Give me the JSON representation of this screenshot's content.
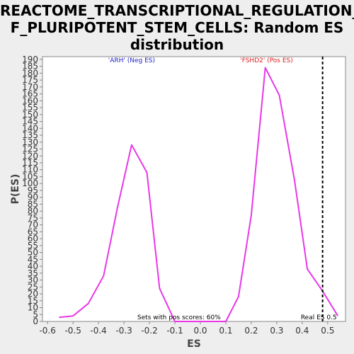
{
  "chart_data": {
    "type": "line",
    "title_lines": [
      "REACTOME_TRANSCRIPTIONAL_REGULATION_O",
      "F_PLURIPOTENT_STEM_CELLS: Random ES",
      "distribution"
    ],
    "xlabel": "ES",
    "ylabel": "P(ES)",
    "xlim": [
      -0.62,
      0.57
    ],
    "ylim": [
      0,
      192
    ],
    "xticks": [
      -0.6,
      -0.5,
      -0.4,
      -0.3,
      -0.2,
      -0.1,
      0.0,
      0.1,
      0.2,
      0.3,
      0.4,
      0.5
    ],
    "xtick_labels": [
      "-0.6",
      "-0.5",
      "-0.4",
      "-0.3",
      "-0.2",
      "-0.1",
      "0.0",
      "0.1",
      "0.2",
      "0.3",
      "0.4",
      "0.5"
    ],
    "yticks": [
      0,
      5,
      10,
      15,
      20,
      25,
      30,
      35,
      40,
      45,
      50,
      55,
      60,
      65,
      70,
      75,
      80,
      85,
      90,
      95,
      100,
      105,
      110,
      115,
      120,
      125,
      130,
      135,
      140,
      145,
      150,
      155,
      160,
      165,
      170,
      175,
      180,
      185,
      190
    ],
    "ytick_labels": [
      "0",
      "5",
      "10",
      "15",
      "20",
      "25",
      "30",
      "35",
      "40",
      "45",
      "50",
      "55",
      "60",
      "65",
      "70",
      "75",
      "80",
      "85",
      "90",
      "95",
      "100",
      "105",
      "110",
      "115",
      "120",
      "125",
      "130",
      "135",
      "140",
      "145",
      "150",
      "155",
      "160",
      "165",
      "170",
      "175",
      "180",
      "185",
      "190"
    ],
    "grid": false,
    "series": [
      {
        "color": "#e837e8",
        "x": [
          -0.555,
          -0.5,
          -0.44,
          -0.38,
          -0.325,
          -0.27,
          -0.21,
          -0.16,
          -0.1,
          -0.05,
          0.0,
          0.05,
          0.1,
          0.15,
          0.2,
          0.255,
          0.31,
          0.37,
          0.42,
          0.48,
          0.54
        ],
        "y": [
          3,
          4,
          13,
          33,
          83,
          128,
          108,
          24,
          0,
          0,
          0,
          0,
          0,
          18,
          77,
          184,
          164,
          102,
          38,
          22,
          4
        ]
      }
    ],
    "real_es_line": {
      "x": 0.48,
      "color": "#000000"
    },
    "annotations": {
      "neg_label": {
        "text": "'ARH' (Neg ES)",
        "color": "#2222cc",
        "x": -0.27,
        "y": 188
      },
      "pos_label": {
        "text": "'FSHD2' (Pos ES)",
        "color": "#dd2222",
        "x": 0.26,
        "y": 188
      },
      "pos_scores": {
        "text": "Sets with pos scores: 60%",
        "color": "#000000",
        "x": 0.08,
        "y": 1.5
      },
      "real_es": {
        "text": "Real ES 0.5",
        "color": "#000000",
        "x": 0.465,
        "y": 1.5
      }
    }
  }
}
